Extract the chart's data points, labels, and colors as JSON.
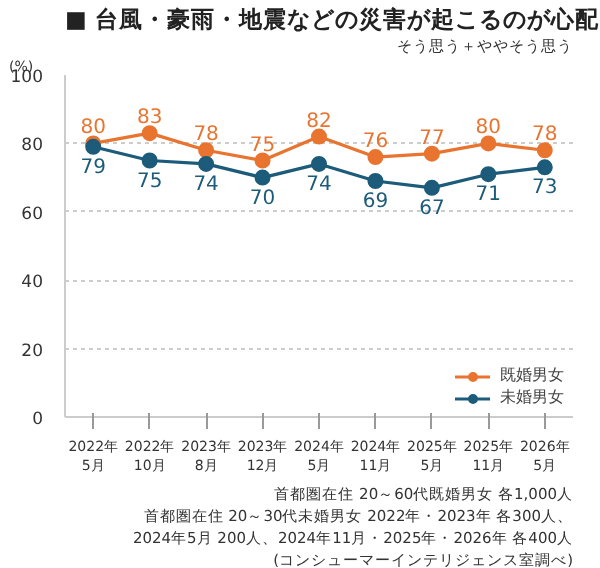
{
  "chart_data": {
    "type": "line",
    "title": "■ 台風・豪雨・地震などの災害が起こるのが心配",
    "subtitle": "そう思う＋ややそう思う",
    "ylabel": "(%)",
    "categories": [
      "2022年\n5月",
      "2022年\n10月",
      "2023年\n8月",
      "2023年\n12月",
      "2024年\n5月",
      "2024年\n11月",
      "2025年\n5月",
      "2025年\n11月",
      "2026年\n5月"
    ],
    "series": [
      {
        "name": "既婚男女",
        "color": "#e8742f",
        "values": [
          80,
          83,
          78,
          75,
          82,
          76,
          77,
          80,
          78
        ]
      },
      {
        "name": "未婚男女",
        "color": "#1c5b7a",
        "values": [
          79,
          75,
          74,
          70,
          74,
          69,
          67,
          71,
          73
        ]
      }
    ],
    "ylim": [
      0,
      100
    ],
    "yticks": [
      0,
      20,
      40,
      60,
      80,
      100
    ],
    "grid": "y",
    "legend": "bottom right",
    "marker": "circle",
    "line_style": "solid",
    "data_labels": true,
    "annotations": [
      "首都圏在住 20～60代既婚男女 各1,000人",
      "首都圏在住 20～30代未婚男女 2022年・2023年 各300人、",
      "2024年5月 200人、2024年11月・2025年・2026年 各400人",
      "(コンシューマーインテリジェンス室調べ)"
    ]
  }
}
